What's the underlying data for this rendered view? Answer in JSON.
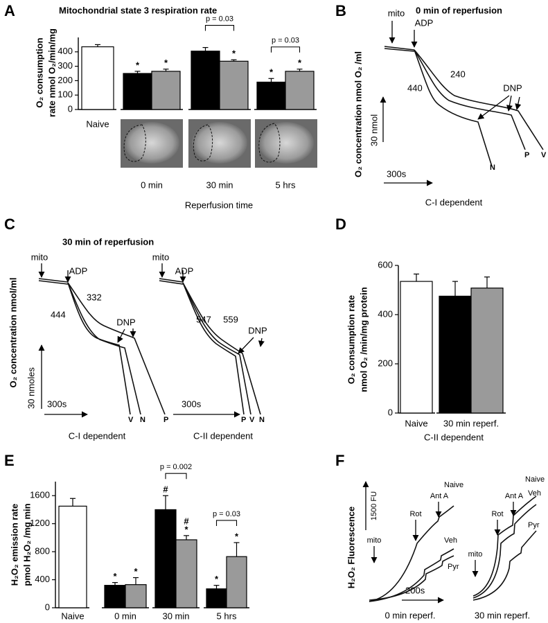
{
  "panel_labels": [
    "A",
    "B",
    "C",
    "D",
    "E",
    "F"
  ],
  "chart_data": [
    {
      "type": "bar",
      "title": "Mitochondrial state 3 respiration rate",
      "ylabel": [
        "O₂ consumption",
        "rate nmol O₂/min/mg"
      ],
      "xlabel": "Reperfusion time",
      "categories": [
        "Naive",
        "0 min",
        "30 min",
        "5 hrs"
      ],
      "series": [
        {
          "color": "#ffffff",
          "values": [
            435,
            null,
            null,
            null
          ],
          "errors": [
            15,
            null,
            null,
            null
          ],
          "symbols": [
            null,
            null,
            null,
            null
          ]
        },
        {
          "color": "#000000",
          "values": [
            null,
            250,
            405,
            190
          ],
          "errors": [
            null,
            15,
            25,
            25
          ],
          "symbols": [
            null,
            [
              "*"
            ],
            null,
            [
              "*"
            ]
          ]
        },
        {
          "color": "#9a9a9a",
          "values": [
            null,
            265,
            335,
            265
          ],
          "errors": [
            null,
            15,
            10,
            15
          ],
          "symbols": [
            null,
            [
              "*"
            ],
            [
              "*"
            ],
            [
              "*"
            ]
          ]
        }
      ],
      "ylim": [
        0,
        500
      ],
      "yticks": [
        0,
        100,
        200,
        300,
        400
      ],
      "annotations": [
        {
          "label": "p = 0.03",
          "category": 2
        },
        {
          "label": "p = 0.03",
          "category": 3
        }
      ]
    },
    {
      "type": "bar",
      "ylabel": [
        "O₂ consumption rate",
        "nmol O₂ /min/mg protein"
      ],
      "xlabel": "C-II dependent",
      "categories": [
        "Naive",
        "30 min reperf."
      ],
      "series": [
        {
          "color": "#ffffff",
          "values": [
            535,
            null
          ],
          "errors": [
            30,
            null
          ],
          "symbols": [
            null,
            null
          ]
        },
        {
          "color": "#000000",
          "values": [
            null,
            475
          ],
          "errors": [
            null,
            60
          ],
          "symbols": [
            null,
            null
          ]
        },
        {
          "color": "#9a9a9a",
          "values": [
            null,
            508
          ],
          "errors": [
            null,
            45
          ],
          "symbols": [
            null,
            null
          ]
        }
      ],
      "ylim": [
        0,
        600
      ],
      "yticks": [
        0,
        200,
        400,
        600
      ],
      "annotations": []
    },
    {
      "type": "bar",
      "ylabel": [
        "H₂O₂ emission rate",
        "pmol H₂O₂ /mg min"
      ],
      "categories": [
        "Naive",
        "0 min",
        "30 min",
        "5 hrs"
      ],
      "series": [
        {
          "color": "#ffffff",
          "values": [
            1450,
            null,
            null,
            null
          ],
          "errors": [
            110,
            null,
            null,
            null
          ],
          "symbols": [
            null,
            null,
            null,
            null
          ]
        },
        {
          "color": "#000000",
          "values": [
            null,
            320,
            1400,
            270
          ],
          "errors": [
            null,
            40,
            200,
            50
          ],
          "symbols": [
            null,
            [
              "*"
            ],
            [
              "#"
            ],
            [
              "*"
            ]
          ]
        },
        {
          "color": "#9a9a9a",
          "values": [
            null,
            330,
            970,
            730
          ],
          "errors": [
            null,
            100,
            60,
            200
          ],
          "symbols": [
            null,
            [
              "*"
            ],
            [
              "#",
              "*"
            ],
            [
              "*"
            ]
          ]
        }
      ],
      "ylim": [
        0,
        1800
      ],
      "yticks": [
        0,
        400,
        800,
        1200,
        1600
      ],
      "annotations": [
        {
          "label": "p = 0.002",
          "category": 2
        },
        {
          "label": "p = 0.03",
          "category": 3
        }
      ]
    }
  ],
  "traces": {
    "B": {
      "title": "0 min of reperfusion",
      "ylabel": "O₂ concentration nmol O₂ /ml",
      "xlabel": "C-I dependent",
      "mito": "mito",
      "adp": "ADP",
      "rates": [
        240,
        440
      ],
      "dnp": "DNP",
      "ends": [
        "N",
        "P",
        "V"
      ],
      "time_scale": "300s",
      "conc_scale": "30 nmol"
    },
    "C": {
      "title": "30 min of reperfusion",
      "ylabel": "O₂ concentration nmol/ml",
      "conc_scale": "30 nmoles",
      "left": {
        "mito": "mito",
        "adp": "ADP",
        "rates": [
          444,
          332
        ],
        "dnp": "DNP",
        "ends": [
          "V",
          "N",
          "P"
        ],
        "time_scale": "300s",
        "xlabel": "C-I dependent"
      },
      "right": {
        "mito": "mito",
        "adp": "ADP",
        "rates": [
          547,
          559
        ],
        "dnp": "DNP",
        "ends": [
          "P",
          "V",
          "N"
        ],
        "time_scale": "300s",
        "xlabel": "C-II dependent"
      }
    },
    "F": {
      "ylabel": "H₂O₂ Fluorescence",
      "scale": "1500 FU",
      "time_scale": "200s",
      "left": {
        "mito": "mito",
        "rot": "Rot",
        "anta": "Ant A",
        "names": [
          "Naive",
          "Veh",
          "Pyr"
        ],
        "xlabel": "0 min reperf."
      },
      "right": {
        "mito": "mito",
        "rot": "Rot",
        "anta": "Ant A",
        "names": [
          "Naive",
          "Veh",
          "Pyr"
        ],
        "xlabel": "30 min reperf."
      }
    }
  }
}
